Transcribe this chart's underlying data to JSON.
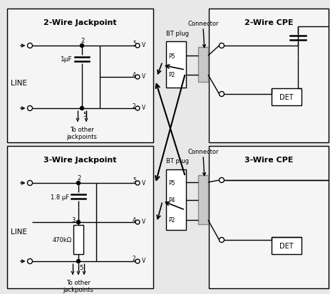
{
  "bg_color": "#e8e8e8",
  "box_fill": "#f5f5f5",
  "line_color": "#000000",
  "title_2wire_jack": "2-Wire Jackpoint",
  "title_3wire_jack": "3-Wire Jackpoint",
  "title_2wire_cpe": "2-Wire CPE",
  "title_3wire_cpe": "3-Wire CPE",
  "label_line": "LINE",
  "label_1uf": "1μF",
  "label_18uf": "1.8 μF",
  "label_470k": "470kΩ",
  "label_to_other": "To other\njackpoints",
  "label_bt_plug": "BT plug",
  "label_connector": "Connector",
  "label_det": "DET",
  "pins_2wire": [
    "P5",
    "P2"
  ],
  "pins_3wire": [
    "P5",
    "P4",
    "P2"
  ],
  "figsize": [
    4.64,
    4.14
  ],
  "dpi": 100
}
